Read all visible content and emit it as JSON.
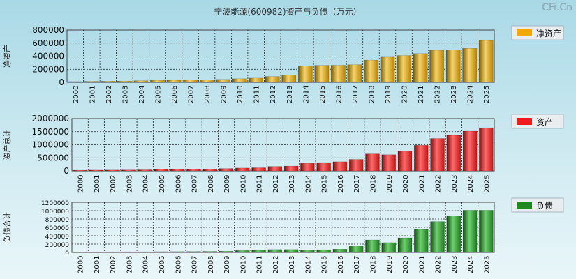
{
  "title": "宁波能源(600982)资产与负债（万元）",
  "watermark": "CFi.Cn",
  "chart_data": [
    {
      "type": "bar",
      "key": "net",
      "ylabel": "净资产",
      "legend": "净资产",
      "color": "#f5a800",
      "ylim": [
        0,
        800000
      ],
      "yticks": [
        0,
        200000,
        400000,
        600000,
        800000
      ],
      "categories": [
        "2000",
        "2001",
        "2002",
        "2003",
        "2004",
        "2005",
        "2006",
        "2007",
        "2008",
        "2009",
        "2010",
        "2011",
        "2012",
        "2013",
        "2014",
        "2015",
        "2016",
        "2017",
        "2018",
        "2019",
        "2020",
        "2021",
        "2022",
        "2023",
        "2024",
        "2025"
      ],
      "values": [
        12000,
        16000,
        18000,
        20000,
        25000,
        30000,
        32000,
        35000,
        38000,
        45000,
        55000,
        65000,
        90000,
        110000,
        255000,
        260000,
        262000,
        270000,
        340000,
        385000,
        410000,
        440000,
        490000,
        495000,
        520000,
        640000
      ]
    },
    {
      "type": "bar",
      "key": "assets",
      "ylabel": "资产总计",
      "legend": "资产",
      "color": "#ee1c1c",
      "ylim": [
        0,
        2000000
      ],
      "yticks": [
        0,
        500000,
        1000000,
        1500000,
        2000000
      ],
      "categories": [
        "2000",
        "2001",
        "2002",
        "2003",
        "2004",
        "2005",
        "2006",
        "2007",
        "2008",
        "2009",
        "2010",
        "2011",
        "2012",
        "2013",
        "2014",
        "2015",
        "2016",
        "2017",
        "2018",
        "2019",
        "2020",
        "2021",
        "2022",
        "2023",
        "2024",
        "2025"
      ],
      "values": [
        25000,
        30000,
        32000,
        35000,
        40000,
        60000,
        65000,
        70000,
        75000,
        90000,
        110000,
        120000,
        170000,
        185000,
        290000,
        320000,
        350000,
        440000,
        650000,
        620000,
        760000,
        980000,
        1240000,
        1360000,
        1520000,
        1650000
      ]
    },
    {
      "type": "bar",
      "key": "liabilities",
      "ylabel": "负债合计",
      "legend": "负债",
      "color": "#1f8a1f",
      "ylim": [
        0,
        1200000
      ],
      "yticks": [
        0,
        200000,
        400000,
        600000,
        800000,
        1000000,
        1200000
      ],
      "categories": [
        "2000",
        "2001",
        "2002",
        "2003",
        "2004",
        "2005",
        "2006",
        "2007",
        "2008",
        "2009",
        "2010",
        "2011",
        "2012",
        "2013",
        "2014",
        "2015",
        "2016",
        "2017",
        "2018",
        "2019",
        "2020",
        "2021",
        "2022",
        "2023",
        "2024",
        "2025"
      ],
      "values": [
        12000,
        13000,
        14000,
        15000,
        15000,
        18000,
        20000,
        22000,
        25000,
        30000,
        45000,
        50000,
        70000,
        70000,
        55000,
        65000,
        80000,
        160000,
        300000,
        235000,
        350000,
        550000,
        740000,
        880000,
        1010000,
        1010000
      ]
    }
  ]
}
